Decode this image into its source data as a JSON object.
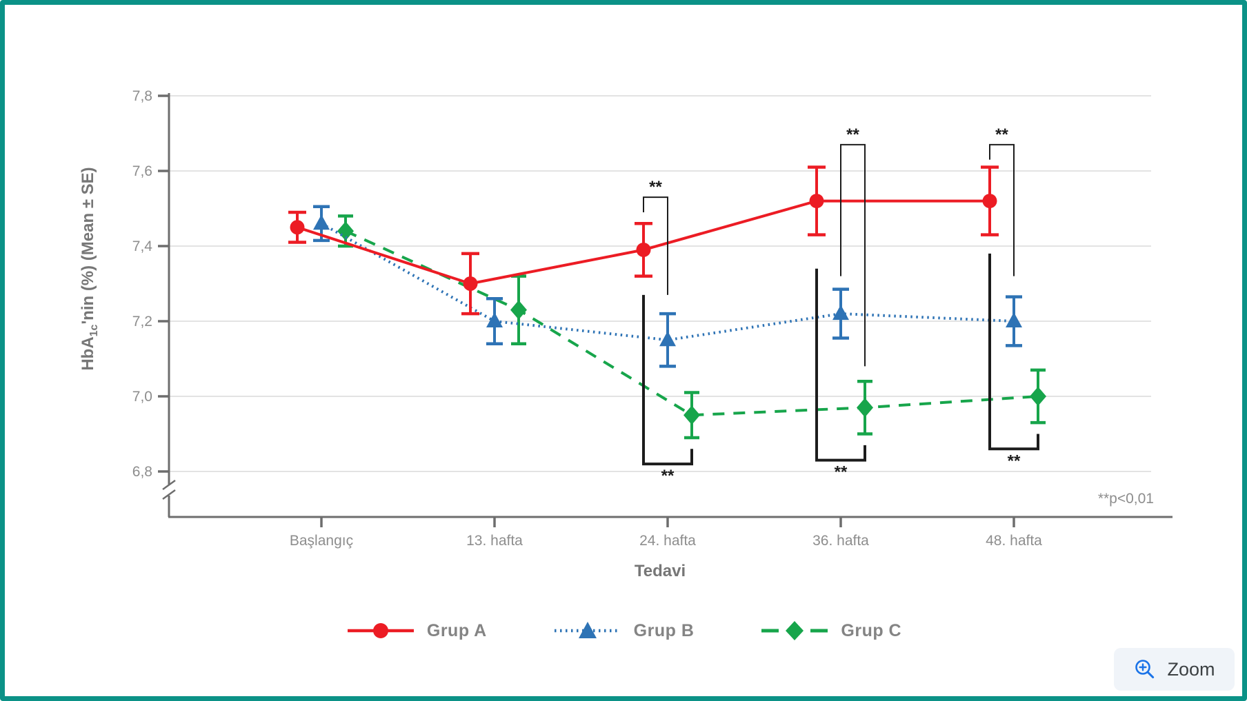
{
  "frame": {
    "border_color": "#0b9287",
    "background": "#ffffff"
  },
  "chart_data": {
    "type": "line",
    "title": "",
    "xlabel": "Tedavi",
    "ylabel": "HbA1c'nin (%) (Mean ± SE)",
    "ylabel_parts": {
      "prefix": "HbA",
      "subscript": "1c",
      "suffix": "'nin (%) (Mean ± SE)"
    },
    "categories": [
      "Başlangıç",
      "13. hafta",
      "24. hafta",
      "36. hafta",
      "48. hafta"
    ],
    "y_ticks": [
      {
        "label": "7,8",
        "value": 7.8
      },
      {
        "label": "7,6",
        "value": 7.6
      },
      {
        "label": "7,4",
        "value": 7.4
      },
      {
        "label": "7,2",
        "value": 7.2
      },
      {
        "label": "7,0",
        "value": 7.0
      },
      {
        "label": "6,8",
        "value": 6.8
      }
    ],
    "ylim": [
      6.8,
      7.8
    ],
    "y_axis_break": true,
    "grid": true,
    "decimal_separator": ",",
    "legend_position": "bottom",
    "series": [
      {
        "name": "Grup A",
        "color": "#ec1c24",
        "marker": "circle",
        "line_style": "solid",
        "values": [
          7.45,
          7.3,
          7.39,
          7.52,
          7.52
        ],
        "se": [
          0.04,
          0.08,
          0.07,
          0.09,
          0.09
        ]
      },
      {
        "name": "Grup B",
        "color": "#2e73b5",
        "marker": "triangle",
        "line_style": "dotted",
        "values": [
          7.46,
          7.2,
          7.15,
          7.22,
          7.2
        ],
        "se": [
          0.045,
          0.06,
          0.07,
          0.065,
          0.065
        ]
      },
      {
        "name": "Grup C",
        "color": "#17a54b",
        "marker": "diamond",
        "line_style": "dashed",
        "values": [
          7.44,
          7.23,
          6.95,
          6.97,
          7.0
        ],
        "se": [
          0.04,
          0.09,
          0.06,
          0.07,
          0.07
        ]
      }
    ],
    "significance_brackets": [
      {
        "category": "24. hafta",
        "between": [
          "Grup A",
          "Grup B"
        ],
        "side": "above",
        "label": "**",
        "bar_value": 7.53,
        "leg_end_values": [
          7.49,
          7.27
        ]
      },
      {
        "category": "24. hafta",
        "between": [
          "Grup A",
          "Grup C"
        ],
        "side": "below",
        "label": "**",
        "bar_value": 6.82,
        "leg_end_values": [
          7.27,
          6.86
        ]
      },
      {
        "category": "36. hafta",
        "between": [
          "Grup B",
          "Grup C"
        ],
        "side": "above",
        "label": "**",
        "bar_value": 7.67,
        "leg_end_values": [
          7.32,
          7.08
        ]
      },
      {
        "category": "36. hafta",
        "between": [
          "Grup A",
          "Grup C"
        ],
        "side": "below",
        "label": "**",
        "bar_value": 6.83,
        "leg_end_values": [
          7.34,
          6.87
        ]
      },
      {
        "category": "48. hafta",
        "between": [
          "Grup A",
          "Grup B"
        ],
        "side": "above",
        "label": "**",
        "bar_value": 7.67,
        "leg_end_values": [
          7.63,
          7.32
        ]
      },
      {
        "category": "48. hafta",
        "between": [
          "Grup A",
          "Grup C"
        ],
        "side": "below",
        "label": "**",
        "bar_value": 6.86,
        "leg_end_values": [
          7.38,
          6.9
        ]
      }
    ],
    "p_note": "**p<0,01"
  },
  "zoom_button": {
    "label": "Zoom"
  }
}
